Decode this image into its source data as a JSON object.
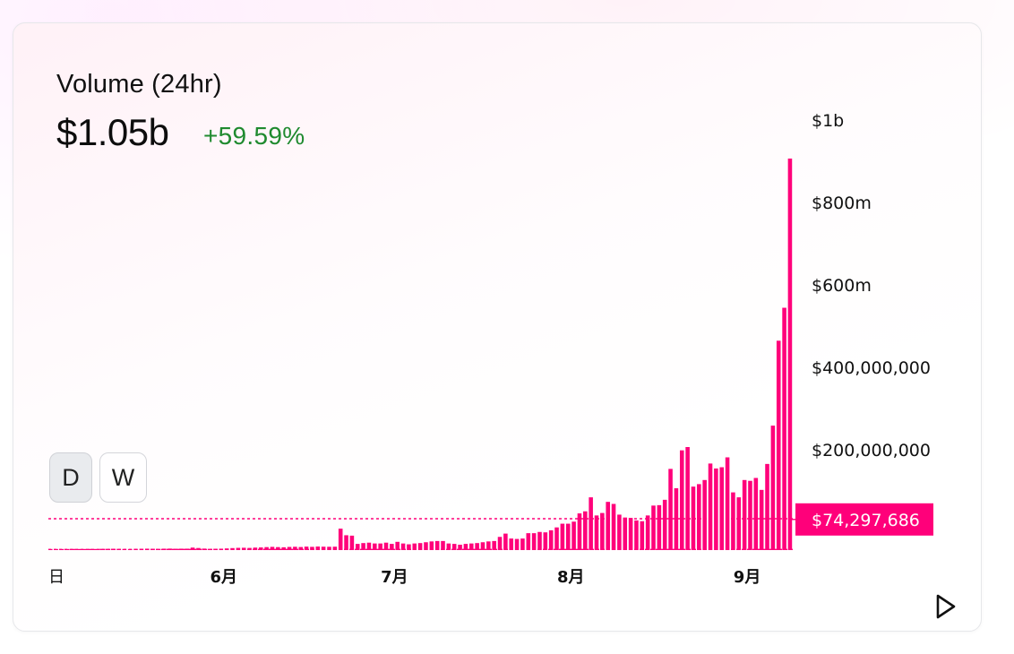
{
  "header": {
    "title": "Volume (24hr)",
    "value": "$1.05b",
    "change": "+59.59%"
  },
  "timeframes": [
    {
      "label": "D",
      "active": true
    },
    {
      "label": "W",
      "active": false
    }
  ],
  "colors": {
    "bar": "#ff007a",
    "change_positive": "#1f8a2f",
    "guide_line": "#ff007a"
  },
  "controls": {
    "play_icon": "play-icon"
  },
  "chart_data": {
    "type": "bar",
    "title": "Volume (24hr)",
    "ylabel": "",
    "xlabel": "",
    "ylim": [
      0,
      1000000000
    ],
    "y_ticks": [
      {
        "value": 1000000000,
        "label": "$1b"
      },
      {
        "value": 800000000,
        "label": "$800m"
      },
      {
        "value": 600000000,
        "label": "$600m"
      },
      {
        "value": 400000000,
        "label": "$400,000,000"
      },
      {
        "value": 200000000,
        "label": "$200,000,000"
      }
    ],
    "x_ticks": [
      {
        "index": 0,
        "label": "日",
        "bold": false
      },
      {
        "index": 30,
        "label": "6月",
        "bold": true
      },
      {
        "index": 60,
        "label": "7月",
        "bold": true
      },
      {
        "index": 91,
        "label": "8月",
        "bold": true
      },
      {
        "index": 122,
        "label": "9月",
        "bold": true
      }
    ],
    "current_value": 74297686,
    "current_label": "$74,297,686",
    "reference_lines": [
      {
        "value": 76000000,
        "style": "dashed"
      },
      {
        "value": 1500000,
        "style": "dashed"
      }
    ],
    "values": [
      2200000,
      2400000,
      2200000,
      2600000,
      2800000,
      2600000,
      2400000,
      2800000,
      2600000,
      3000000,
      3000000,
      3200000,
      3000000,
      2800000,
      2600000,
      3000000,
      3200000,
      3400000,
      3200000,
      3000000,
      3400000,
      3600000,
      3200000,
      3400000,
      3400000,
      6000000,
      5000000,
      3600000,
      3000000,
      3200000,
      3400000,
      4000000,
      4800000,
      5400000,
      5600000,
      5200000,
      6000000,
      6400000,
      7200000,
      7800000,
      7200000,
      6800000,
      7600000,
      8000000,
      7400000,
      8400000,
      7800000,
      8600000,
      8200000,
      8000000,
      8200000,
      52000000,
      36000000,
      35000000,
      15000000,
      17000000,
      18000000,
      16000000,
      16000000,
      18000000,
      15000000,
      20000000,
      16000000,
      14000000,
      16000000,
      17000000,
      19000000,
      21000000,
      22000000,
      22000000,
      16000000,
      15000000,
      13000000,
      15000000,
      16000000,
      17000000,
      19000000,
      21000000,
      22000000,
      32000000,
      40000000,
      28000000,
      27000000,
      28000000,
      41000000,
      41000000,
      44000000,
      43000000,
      48000000,
      55000000,
      64000000,
      64000000,
      69000000,
      89000000,
      94000000,
      128000000,
      84000000,
      90000000,
      117000000,
      112000000,
      86000000,
      79000000,
      78000000,
      72000000,
      70000000,
      84000000,
      108000000,
      109000000,
      122000000,
      197000000,
      150000000,
      242000000,
      250000000,
      154000000,
      160000000,
      170000000,
      210000000,
      198000000,
      201000000,
      225000000,
      140000000,
      128000000,
      170000000,
      168000000,
      175000000,
      146000000,
      209000000,
      302000000,
      508000000,
      588000000,
      950000000
    ]
  }
}
